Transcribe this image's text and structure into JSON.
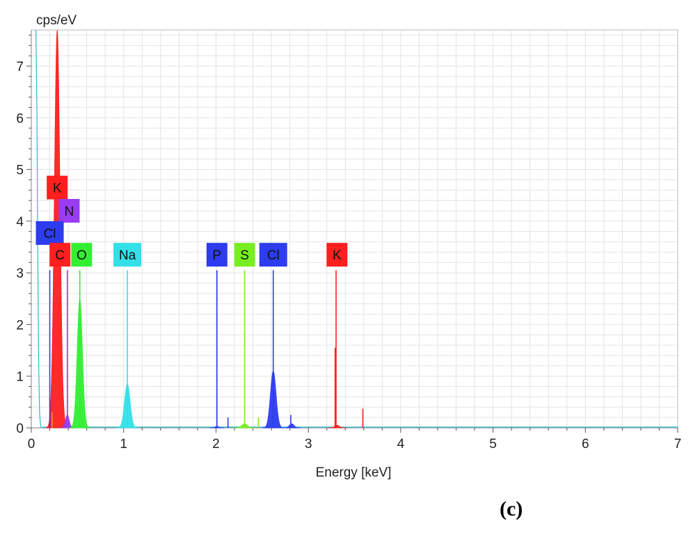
{
  "panel_label": "(c)",
  "chart_data": {
    "type": "area",
    "title": "",
    "ylabel": "cps/eV",
    "xlabel": "Energy [keV]",
    "xlim": [
      0,
      7
    ],
    "ylim": [
      0,
      7.7
    ],
    "xticks": [
      0,
      1,
      2,
      3,
      4,
      5,
      6,
      7
    ],
    "yticks": [
      0,
      1,
      2,
      3,
      4,
      5,
      6,
      7
    ],
    "grid": true,
    "colors": {
      "C": "#ff1f1f",
      "O": "#33ee33",
      "Na": "#33e0e8",
      "P": "#2d3cf0",
      "S": "#77ee22",
      "Cl": "#2d3cf0",
      "K": "#ff1f1f",
      "N": "#9a3cf2",
      "background_spectrum": "#2ab8d0"
    },
    "series": [
      {
        "name": "C",
        "color": "#ff1f1f",
        "peaks": [
          {
            "x": 0.28,
            "y": 7.7,
            "sigma": 0.03
          }
        ]
      },
      {
        "name": "N",
        "color": "#9a3cf2",
        "peaks": [
          {
            "x": 0.39,
            "y": 0.25,
            "sigma": 0.02
          }
        ]
      },
      {
        "name": "O",
        "color": "#33ee33",
        "peaks": [
          {
            "x": 0.525,
            "y": 2.5,
            "sigma": 0.028
          }
        ]
      },
      {
        "name": "Na",
        "color": "#33e0e8",
        "peaks": [
          {
            "x": 1.04,
            "y": 0.85,
            "sigma": 0.03
          }
        ]
      },
      {
        "name": "P",
        "color": "#2d3cf0",
        "peaks": [
          {
            "x": 2.01,
            "y": 0.03,
            "sigma": 0.02
          }
        ]
      },
      {
        "name": "S",
        "color": "#77ee22",
        "peaks": [
          {
            "x": 2.31,
            "y": 0.08,
            "sigma": 0.03
          }
        ]
      },
      {
        "name": "Cl",
        "color": "#2d3cf0",
        "peaks": [
          {
            "x": 2.62,
            "y": 1.1,
            "sigma": 0.03
          },
          {
            "x": 2.82,
            "y": 0.08,
            "sigma": 0.025
          }
        ]
      },
      {
        "name": "K",
        "color": "#ff1f1f",
        "peaks": [
          {
            "x": 3.31,
            "y": 0.05,
            "sigma": 0.025
          }
        ]
      }
    ],
    "spikes": [
      {
        "x": 0.2,
        "y": 3.05,
        "color": "#2d3cf0"
      },
      {
        "x": 0.225,
        "y": 0.3,
        "color": "#ff8c1a"
      },
      {
        "x": 0.39,
        "y": 3.05,
        "color": "#9a3cf2"
      },
      {
        "x": 0.525,
        "y": 3.05,
        "color": "#33ee33"
      },
      {
        "x": 1.04,
        "y": 3.05,
        "color": "#33e0e8"
      },
      {
        "x": 2.01,
        "y": 3.05,
        "color": "#2d3cf0"
      },
      {
        "x": 2.13,
        "y": 0.2,
        "color": "#2d3cf0"
      },
      {
        "x": 2.31,
        "y": 3.05,
        "color": "#77ee22"
      },
      {
        "x": 2.46,
        "y": 0.2,
        "color": "#77ee22"
      },
      {
        "x": 2.62,
        "y": 3.05,
        "color": "#2d3cf0"
      },
      {
        "x": 2.81,
        "y": 0.25,
        "color": "#2d3cf0"
      },
      {
        "x": 3.3,
        "y": 3.05,
        "color": "#ff1f1f"
      },
      {
        "x": 3.29,
        "y": 1.55,
        "color": "#ff1f1f"
      },
      {
        "x": 3.59,
        "y": 0.37,
        "color": "#ff1f1f"
      }
    ],
    "element_labels": [
      {
        "text": "K",
        "x": 0.28,
        "y": 4.65,
        "color": "#ff1f1f"
      },
      {
        "text": "N",
        "x": 0.41,
        "y": 4.2,
        "color": "#9a3cf2"
      },
      {
        "text": "Cl",
        "x": 0.2,
        "y": 3.77,
        "color": "#2d3cf0"
      },
      {
        "text": "C",
        "x": 0.31,
        "y": 3.35,
        "color": "#ff1f1f"
      },
      {
        "text": "O",
        "x": 0.545,
        "y": 3.35,
        "color": "#33ee33"
      },
      {
        "text": "Na",
        "x": 1.04,
        "y": 3.35,
        "color": "#33e0e8"
      },
      {
        "text": "P",
        "x": 2.01,
        "y": 3.35,
        "color": "#2d3cf0"
      },
      {
        "text": "S",
        "x": 2.31,
        "y": 3.35,
        "color": "#77ee22"
      },
      {
        "text": "Cl",
        "x": 2.62,
        "y": 3.35,
        "color": "#2d3cf0"
      },
      {
        "text": "K",
        "x": 3.31,
        "y": 3.35,
        "color": "#ff1f1f"
      }
    ]
  }
}
